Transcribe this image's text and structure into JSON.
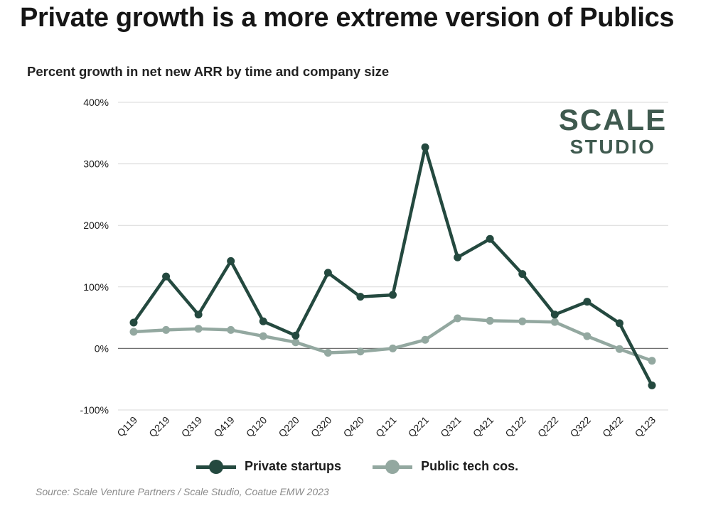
{
  "page": {
    "title": "Private growth is a more extreme version of Publics",
    "source": "Source: Scale Venture Partners / Scale Studio, Coatue EMW 2023"
  },
  "logo": {
    "line1": "SCALE",
    "line2": "STUDIO",
    "color": "#3f5a4f"
  },
  "chart_data": {
    "type": "line",
    "title": "Percent growth in net new ARR by time and company size",
    "xlabel": "",
    "ylabel": "",
    "ylim": [
      -100,
      400
    ],
    "yticks": [
      -100,
      0,
      100,
      200,
      300,
      400
    ],
    "ytick_labels": [
      "-100%",
      "0%",
      "100%",
      "200%",
      "300%",
      "400%"
    ],
    "grid": true,
    "legend_position": "bottom",
    "categories": [
      "Q119",
      "Q219",
      "Q319",
      "Q419",
      "Q120",
      "Q220",
      "Q320",
      "Q420",
      "Q121",
      "Q221",
      "Q321",
      "Q421",
      "Q122",
      "Q222",
      "Q322",
      "Q422",
      "Q123"
    ],
    "series": [
      {
        "name": "Private startups",
        "color": "#24493f",
        "values": [
          42,
          117,
          55,
          142,
          44,
          21,
          123,
          84,
          87,
          327,
          148,
          178,
          121,
          55,
          76,
          41,
          -60
        ]
      },
      {
        "name": "Public tech cos.",
        "color": "#93a8a0",
        "values": [
          27,
          30,
          32,
          30,
          20,
          10,
          -7,
          -5,
          0,
          14,
          49,
          45,
          44,
          43,
          20,
          -1,
          -20
        ]
      }
    ]
  }
}
